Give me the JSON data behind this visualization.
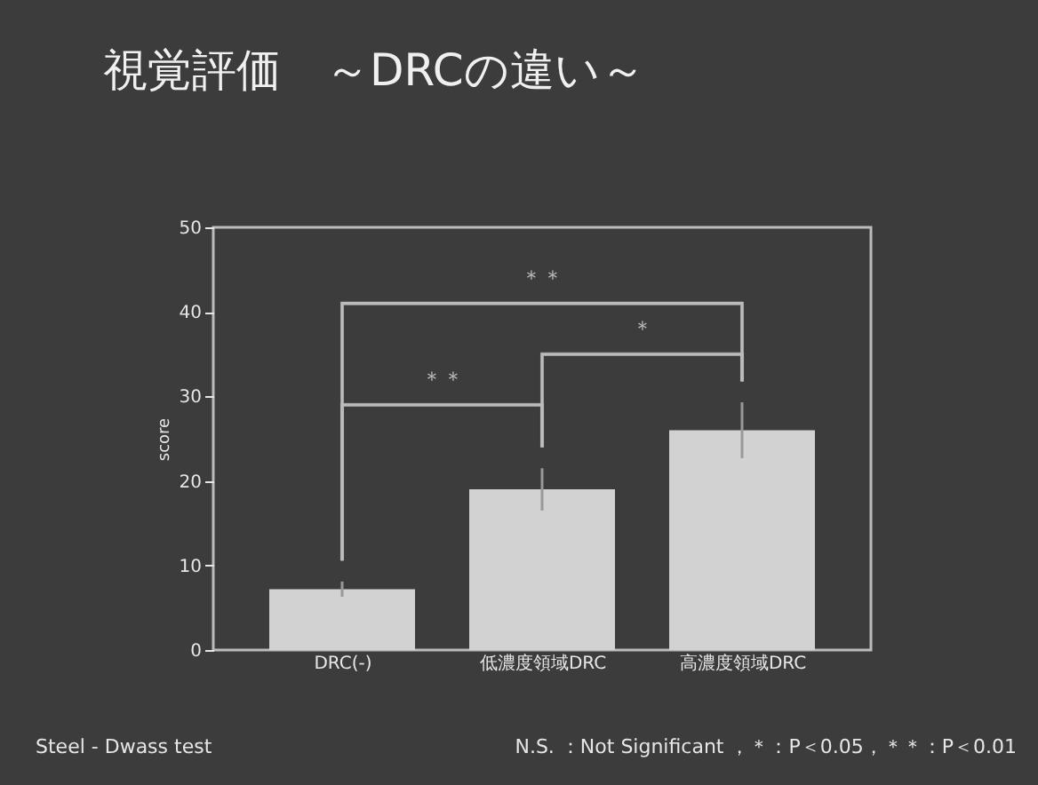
{
  "chart_data": {
    "type": "bar",
    "title": "視覚評価　～DRCの違い～",
    "ylabel": "score",
    "categories": [
      "DRC(-)",
      "低濃度領域DRC",
      "高濃度領域DRC"
    ],
    "values": [
      7.2,
      19,
      26
    ],
    "errors": [
      0.9,
      2.5,
      3.3
    ],
    "color": "#d2d2d2",
    "ylim": [
      0,
      50
    ],
    "yticks": [
      0,
      10,
      20,
      30,
      40,
      50
    ],
    "grid": false,
    "annotations": [
      "＊＊",
      "＊",
      "＊＊",
      "Steel - Dwass test",
      "N.S. ：Not Significant ，＊：P＜0.05，＊＊：P＜0.01"
    ]
  }
}
